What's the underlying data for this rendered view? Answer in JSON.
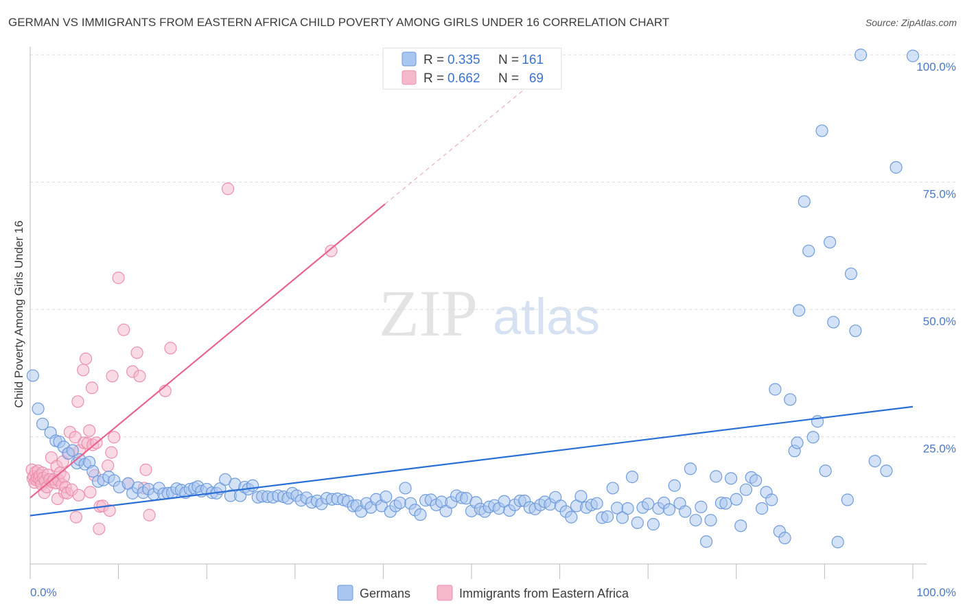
{
  "header": {
    "title": "GERMAN VS IMMIGRANTS FROM EASTERN AFRICA CHILD POVERTY AMONG GIRLS UNDER 16 CORRELATION CHART",
    "source": "Source: ZipAtlas.com"
  },
  "watermark": {
    "part1": "ZIP",
    "part2": "atlas"
  },
  "legend": {
    "rows": [
      {
        "r_label": "R =",
        "r_value": "0.335",
        "n_label": "N =",
        "n_value": "161"
      },
      {
        "r_label": "R =",
        "r_value": "0.662",
        "n_label": "N =",
        "n_value": "69"
      }
    ]
  },
  "bottom_legend": {
    "german": "Germans",
    "africa": "Immigrants from Eastern Africa"
  },
  "colors": {
    "german_fill": "#a9c6ef",
    "german_stroke": "#6e9bdc",
    "german_line": "#2a6fd6",
    "africa_fill": "#f6b8cb",
    "africa_stroke": "#ec8fac",
    "africa_line": "#e8648e",
    "tick_text": "#4a78c8",
    "grid": "#dddddd"
  },
  "chart_data": {
    "type": "scatter",
    "title": "GERMAN VS IMMIGRANTS FROM EASTERN AFRICA CHILD POVERTY AMONG GIRLS UNDER 16 CORRELATION CHART",
    "xlabel": "",
    "ylabel": "Child Poverty Among Girls Under 16",
    "xlim": [
      0,
      100
    ],
    "ylim": [
      0,
      100
    ],
    "x_tick_labels": [
      "0.0%",
      "100.0%"
    ],
    "y_ticks": [
      {
        "value": 100,
        "label": "100.0%"
      },
      {
        "value": 75,
        "label": "75.0%"
      },
      {
        "value": 50,
        "label": "50.0%"
      },
      {
        "value": 25,
        "label": "25.0%"
      }
    ],
    "grid": true,
    "legend_position": "top-center",
    "series": [
      {
        "name": "Germans",
        "r": 0.335,
        "n": 161,
        "trend": {
          "x": [
            0,
            100
          ],
          "y": [
            9.5,
            30.9
          ]
        },
        "points": [
          [
            0.3,
            37
          ],
          [
            0.9,
            30.5
          ],
          [
            1.4,
            27.5
          ],
          [
            2.3,
            25.8
          ],
          [
            2.9,
            24.2
          ],
          [
            3.3,
            24.0
          ],
          [
            3.8,
            23.0
          ],
          [
            4.3,
            21.7
          ],
          [
            4.8,
            22.3
          ],
          [
            5.3,
            19.8
          ],
          [
            5.6,
            20.5
          ],
          [
            6.2,
            19.6
          ],
          [
            6.7,
            20.0
          ],
          [
            7.1,
            18.2
          ],
          [
            7.7,
            16.2
          ],
          [
            8.3,
            16.5
          ],
          [
            8.9,
            17.1
          ],
          [
            9.5,
            16.4
          ],
          [
            10.1,
            15.1
          ],
          [
            11.1,
            15.8
          ],
          [
            11.6,
            13.9
          ],
          [
            12.2,
            15.0
          ],
          [
            12.8,
            14.0
          ],
          [
            13.4,
            14.7
          ],
          [
            14.0,
            13.7
          ],
          [
            14.6,
            14.9
          ],
          [
            15.1,
            13.8
          ],
          [
            15.6,
            13.9
          ],
          [
            16.1,
            14.0
          ],
          [
            16.6,
            14.8
          ],
          [
            17.1,
            14.5
          ],
          [
            17.6,
            14.0
          ],
          [
            18.1,
            14.7
          ],
          [
            18.6,
            14.9
          ],
          [
            19.0,
            15.2
          ],
          [
            19.4,
            14.3
          ],
          [
            20.0,
            14.7
          ],
          [
            20.6,
            14.0
          ],
          [
            21.1,
            13.9
          ],
          [
            21.5,
            14.8
          ],
          [
            22.1,
            16.6
          ],
          [
            22.7,
            13.4
          ],
          [
            23.2,
            15.7
          ],
          [
            23.8,
            13.4
          ],
          [
            24.3,
            15.1
          ],
          [
            24.7,
            14.7
          ],
          [
            25.2,
            15.4
          ],
          [
            25.8,
            13.1
          ],
          [
            26.3,
            13.3
          ],
          [
            26.9,
            13.2
          ],
          [
            27.5,
            13.1
          ],
          [
            28.1,
            13.4
          ],
          [
            28.7,
            13.2
          ],
          [
            29.2,
            12.9
          ],
          [
            29.7,
            13.9
          ],
          [
            30.2,
            13.4
          ],
          [
            30.7,
            12.5
          ],
          [
            31.3,
            13.0
          ],
          [
            31.9,
            12.1
          ],
          [
            32.5,
            12.4
          ],
          [
            33.0,
            11.8
          ],
          [
            33.6,
            12.9
          ],
          [
            34.2,
            12.7
          ],
          [
            34.8,
            12.8
          ],
          [
            35.5,
            12.6
          ],
          [
            36.0,
            12.3
          ],
          [
            36.6,
            11.4
          ],
          [
            37.0,
            11.5
          ],
          [
            37.5,
            10.3
          ],
          [
            38.1,
            11.9
          ],
          [
            38.6,
            11.1
          ],
          [
            39.2,
            12.7
          ],
          [
            39.8,
            11.4
          ],
          [
            40.3,
            13.2
          ],
          [
            40.8,
            10.3
          ],
          [
            41.4,
            11.4
          ],
          [
            41.9,
            12.0
          ],
          [
            42.5,
            14.9
          ],
          [
            43.1,
            11.9
          ],
          [
            43.6,
            10.6
          ],
          [
            44.2,
            9.7
          ],
          [
            44.8,
            12.5
          ],
          [
            45.4,
            12.6
          ],
          [
            46.0,
            11.6
          ],
          [
            46.6,
            12.2
          ],
          [
            47.1,
            10.4
          ],
          [
            47.7,
            12.1
          ],
          [
            48.3,
            13.4
          ],
          [
            48.9,
            13.0
          ],
          [
            49.4,
            12.9
          ],
          [
            50.0,
            10.4
          ],
          [
            50.5,
            12.1
          ],
          [
            51.0,
            10.8
          ],
          [
            51.5,
            10.3
          ],
          [
            52.0,
            11.2
          ],
          [
            52.6,
            11.5
          ],
          [
            53.1,
            10.9
          ],
          [
            53.7,
            12.3
          ],
          [
            54.3,
            10.5
          ],
          [
            54.9,
            11.6
          ],
          [
            55.5,
            12.4
          ],
          [
            56.0,
            12.4
          ],
          [
            56.6,
            11.1
          ],
          [
            57.2,
            10.8
          ],
          [
            57.8,
            11.6
          ],
          [
            58.3,
            12.2
          ],
          [
            58.9,
            11.7
          ],
          [
            59.5,
            13.1
          ],
          [
            60.1,
            11.4
          ],
          [
            60.7,
            10.3
          ],
          [
            61.3,
            9.2
          ],
          [
            61.9,
            11.4
          ],
          [
            62.4,
            13.3
          ],
          [
            63.0,
            11.1
          ],
          [
            63.6,
            11.6
          ],
          [
            64.2,
            11.9
          ],
          [
            64.8,
            9.1
          ],
          [
            65.4,
            9.3
          ],
          [
            66.0,
            14.9
          ],
          [
            66.5,
            11.0
          ],
          [
            67.1,
            9.1
          ],
          [
            67.7,
            10.9
          ],
          [
            68.2,
            17.1
          ],
          [
            68.8,
            8.1
          ],
          [
            69.4,
            11.1
          ],
          [
            70.0,
            11.8
          ],
          [
            70.6,
            7.8
          ],
          [
            71.2,
            10.9
          ],
          [
            71.8,
            12.0
          ],
          [
            72.4,
            10.7
          ],
          [
            73.0,
            15.4
          ],
          [
            73.6,
            11.9
          ],
          [
            74.2,
            10.3
          ],
          [
            74.8,
            18.7
          ],
          [
            75.4,
            8.6
          ],
          [
            76.0,
            11.2
          ],
          [
            76.6,
            4.4
          ],
          [
            77.1,
            8.6
          ],
          [
            77.7,
            17.2
          ],
          [
            78.3,
            12.0
          ],
          [
            78.8,
            11.9
          ],
          [
            79.4,
            16.8
          ],
          [
            80.0,
            12.7
          ],
          [
            80.5,
            7.5
          ],
          [
            81.1,
            14.6
          ],
          [
            81.7,
            17.0
          ],
          [
            82.2,
            16.4
          ],
          [
            82.9,
            10.9
          ],
          [
            83.4,
            14.1
          ],
          [
            84.0,
            12.6
          ],
          [
            84.4,
            34.3
          ],
          [
            84.9,
            6.4
          ],
          [
            85.5,
            5.1
          ],
          [
            86.1,
            32.3
          ],
          [
            86.6,
            22.2
          ],
          [
            86.9,
            23.8
          ],
          [
            87.1,
            49.8
          ],
          [
            87.7,
            71.2
          ],
          [
            88.2,
            61.5
          ],
          [
            88.7,
            24.9
          ],
          [
            89.2,
            28.0
          ],
          [
            89.7,
            85.1
          ],
          [
            90.1,
            18.3
          ],
          [
            90.6,
            63.2
          ],
          [
            91.0,
            47.5
          ],
          [
            91.5,
            4.3
          ],
          [
            92.6,
            12.6
          ],
          [
            93.0,
            57.0
          ],
          [
            93.5,
            45.8
          ],
          [
            95.7,
            20.2
          ],
          [
            97.0,
            18.3
          ],
          [
            98.1,
            77.9
          ],
          [
            100,
            99.8
          ],
          [
            94.1,
            100.0
          ]
        ]
      },
      {
        "name": "Immigrants from Eastern Africa",
        "r": 0.662,
        "n": 69,
        "trend": {
          "x": [
            0,
            40.2
          ],
          "y": [
            13.0,
            70.7
          ]
        },
        "trend_dashed": {
          "x": [
            40.2,
            60.1
          ],
          "y": [
            70.7,
            99.1
          ]
        },
        "points": [
          [
            0.2,
            18.5
          ],
          [
            0.3,
            16.8
          ],
          [
            0.4,
            17.2
          ],
          [
            0.5,
            16.0
          ],
          [
            0.6,
            18.0
          ],
          [
            0.7,
            16.5
          ],
          [
            0.8,
            17.0
          ],
          [
            0.9,
            18.3
          ],
          [
            1.0,
            16.8
          ],
          [
            1.1,
            17.4
          ],
          [
            1.2,
            16.2
          ],
          [
            1.3,
            15.6
          ],
          [
            1.4,
            17.9
          ],
          [
            1.5,
            16.9
          ],
          [
            1.6,
            14.0
          ],
          [
            1.7,
            16.3
          ],
          [
            1.9,
            15.1
          ],
          [
            2.0,
            17.5
          ],
          [
            2.2,
            16.6
          ],
          [
            2.4,
            20.9
          ],
          [
            2.5,
            16.1
          ],
          [
            2.7,
            16.6
          ],
          [
            2.9,
            15.9
          ],
          [
            3.0,
            19.2
          ],
          [
            3.1,
            12.8
          ],
          [
            3.2,
            16.5
          ],
          [
            3.4,
            17.9
          ],
          [
            3.6,
            15.6
          ],
          [
            3.7,
            20.1
          ],
          [
            3.8,
            17.1
          ],
          [
            3.9,
            14.0
          ],
          [
            4.0,
            15.1
          ],
          [
            4.2,
            13.9
          ],
          [
            4.4,
            21.8
          ],
          [
            4.5,
            25.9
          ],
          [
            4.7,
            14.6
          ],
          [
            5.1,
            24.9
          ],
          [
            5.2,
            9.2
          ],
          [
            5.4,
            31.9
          ],
          [
            5.5,
            13.5
          ],
          [
            5.6,
            22.3
          ],
          [
            6.0,
            38.1
          ],
          [
            6.1,
            23.8
          ],
          [
            6.3,
            40.3
          ],
          [
            6.5,
            23.7
          ],
          [
            6.7,
            26.2
          ],
          [
            6.8,
            14.1
          ],
          [
            7.0,
            34.6
          ],
          [
            7.1,
            23.4
          ],
          [
            7.3,
            17.4
          ],
          [
            7.5,
            23.8
          ],
          [
            7.8,
            6.9
          ],
          [
            7.9,
            11.3
          ],
          [
            8.2,
            11.4
          ],
          [
            8.8,
            19.3
          ],
          [
            9.0,
            10.5
          ],
          [
            9.2,
            21.9
          ],
          [
            9.3,
            36.9
          ],
          [
            9.5,
            24.9
          ],
          [
            10.0,
            56.2
          ],
          [
            10.6,
            46.0
          ],
          [
            11.1,
            15.8
          ],
          [
            11.6,
            37.8
          ],
          [
            12.1,
            41.5
          ],
          [
            12.4,
            36.9
          ],
          [
            12.9,
            14.9
          ],
          [
            13.1,
            18.5
          ],
          [
            15.3,
            34.0
          ],
          [
            15.9,
            42.4
          ],
          [
            22.4,
            73.7
          ],
          [
            34.1,
            61.5
          ],
          [
            13.5,
            9.6
          ]
        ]
      }
    ]
  }
}
